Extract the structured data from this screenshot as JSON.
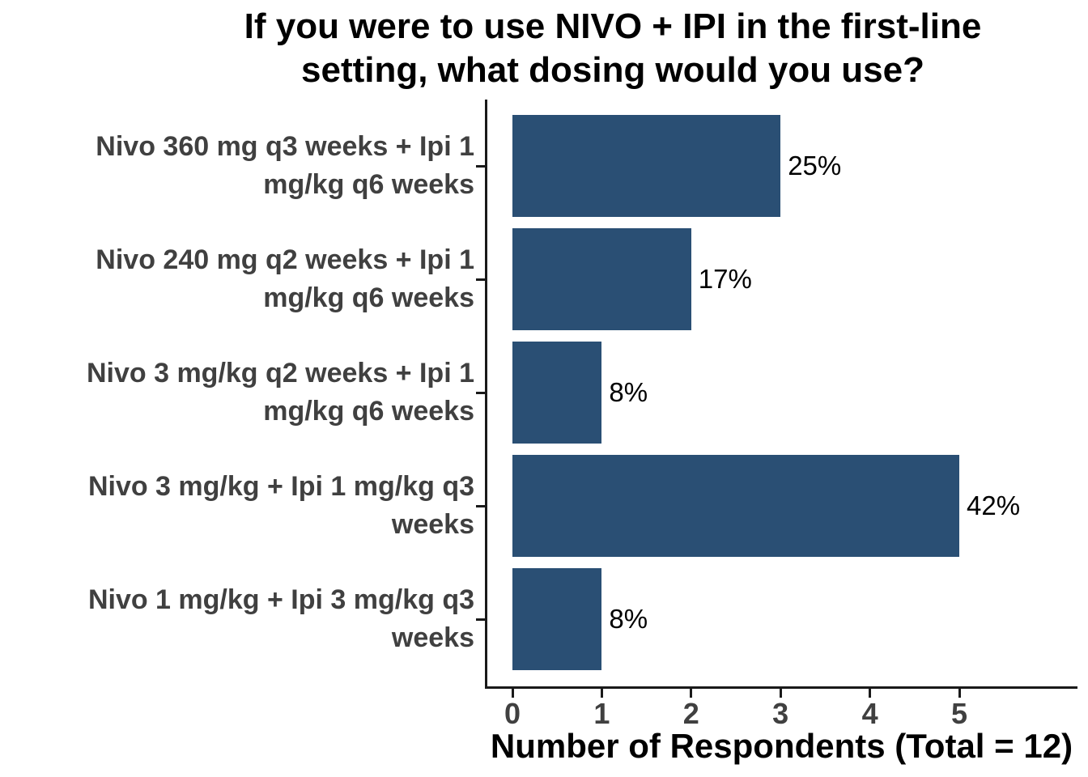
{
  "title": {
    "line1": "If you were to use NIVO + IPI in the first-line",
    "line2": "setting, what dosing would you use?"
  },
  "x_axis": {
    "label": "Number of Respondents (Total = 12)",
    "ticks": [
      "0",
      "1",
      "2",
      "3",
      "4",
      "5"
    ]
  },
  "colors": {
    "bar": "#2a4f74",
    "axis_line": "#1a1a1a",
    "axis_text": "#404040",
    "value_label_text": "#000000"
  },
  "chart_data": {
    "type": "bar",
    "orientation": "horizontal",
    "title": "If you were to use NIVO + IPI in the first-line setting, what dosing would you use?",
    "xlabel": "Number of Respondents (Total = 12)",
    "total_respondents": 12,
    "categories": [
      "Nivo 360 mg q3 weeks + Ipi 1 mg/kg q6 weeks",
      "Nivo 240 mg q2 weeks + Ipi 1 mg/kg q6 weeks",
      "Nivo 3 mg/kg q2 weeks + Ipi 1 mg/kg q6 weeks",
      "Nivo 3 mg/kg + Ipi 1 mg/kg q3 weeks",
      "Nivo 1 mg/kg + Ipi 3 mg/kg q3 weeks"
    ],
    "category_lines": [
      [
        "Nivo 360 mg q3 weeks + Ipi 1",
        "mg/kg q6 weeks"
      ],
      [
        "Nivo 240 mg q2 weeks + Ipi 1",
        "mg/kg q6 weeks"
      ],
      [
        "Nivo 3 mg/kg q2 weeks + Ipi 1",
        "mg/kg q6 weeks"
      ],
      [
        "Nivo 3 mg/kg + Ipi 1 mg/kg q3",
        "weeks"
      ],
      [
        "Nivo 1 mg/kg + Ipi 3 mg/kg q3",
        "weeks"
      ]
    ],
    "values": [
      3,
      2,
      1,
      5,
      1
    ],
    "bar_labels": [
      "25%",
      "17%",
      "8%",
      "42%",
      "8%"
    ],
    "x_ticks": [
      0,
      1,
      2,
      3,
      4,
      5
    ],
    "xlim": [
      0,
      6.3
    ],
    "grid": false,
    "legend": false
  }
}
